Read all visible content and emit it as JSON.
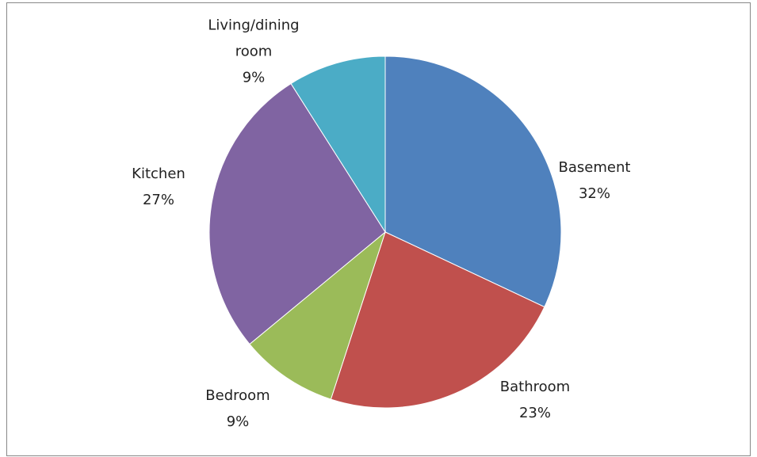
{
  "chart_data": {
    "type": "pie",
    "categories": [
      "Basement",
      "Bathroom",
      "Bedroom",
      "Kitchen",
      "Living/dining room"
    ],
    "values": [
      32,
      23,
      9,
      27,
      9
    ],
    "value_labels": [
      "32%",
      "23%",
      "9%",
      "27%",
      "9%"
    ],
    "colors": [
      "#4f81bd",
      "#c0504d",
      "#9bbb59",
      "#8064a2",
      "#4bacc6"
    ]
  }
}
